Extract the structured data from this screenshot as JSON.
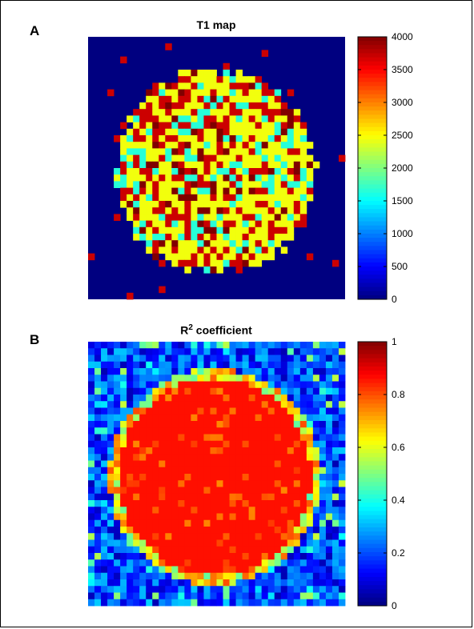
{
  "panels": [
    {
      "letter": "A",
      "title": "T1 map"
    },
    {
      "letter": "B",
      "title_main": "R",
      "title_sup": "2",
      "title_rest": " coefficient"
    }
  ],
  "chart_data": [
    {
      "type": "heatmap",
      "title": "T1 map",
      "panel": "A",
      "grid": [
        40,
        40
      ],
      "description_of_values": "Circular phantom of T1 values (approx. 1200–4000) on background 0",
      "colormap": "jet",
      "clim": [
        0,
        4000
      ],
      "colorbar_ticks": [
        0,
        500,
        1000,
        1500,
        2000,
        2500,
        3000,
        3500,
        4000
      ],
      "background_value": 0
    },
    {
      "type": "heatmap",
      "title": "R2 coefficient",
      "panel": "B",
      "grid": [
        40,
        40
      ],
      "colormap": "jet",
      "clim": [
        0,
        1
      ],
      "colorbar_ticks": [
        0,
        0.2,
        0.4,
        0.6,
        0.8,
        1
      ]
    }
  ],
  "colors": {
    "frame": "#000000",
    "background": "#ffffff"
  }
}
